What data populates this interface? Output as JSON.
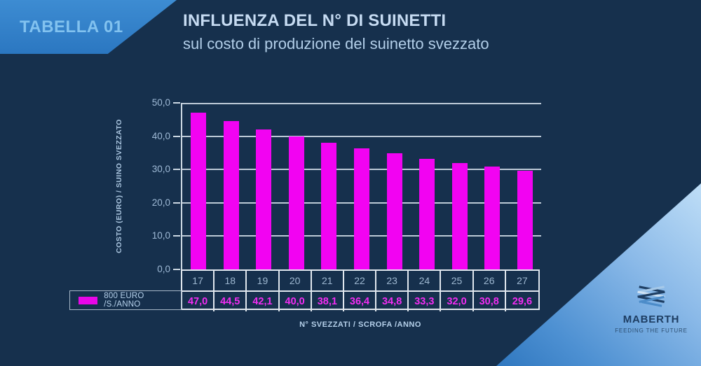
{
  "ribbon": {
    "label": "TABELLA 01"
  },
  "header": {
    "title": "INFLUENZA DEL N° DI SUINETTI",
    "subtitle": "sul costo di produzione del suinetto svezzato"
  },
  "chart_data": {
    "type": "bar",
    "title": "INFLUENZA DEL N° DI SUINETTI sul costo di produzione del suinetto svezzato",
    "categories": [
      "17",
      "18",
      "19",
      "20",
      "21",
      "22",
      "23",
      "24",
      "25",
      "26",
      "27"
    ],
    "values": [
      47.0,
      44.5,
      42.1,
      40.0,
      38.1,
      36.4,
      34.8,
      33.3,
      32.0,
      30.8,
      29.6
    ],
    "value_labels": [
      "47,0",
      "44,5",
      "42,1",
      "40,0",
      "38,1",
      "36,4",
      "34,8",
      "33,3",
      "32,0",
      "30,8",
      "29,6"
    ],
    "series": [
      {
        "name": "800 EURO /S./ANNO",
        "values": [
          47.0,
          44.5,
          42.1,
          40.0,
          38.1,
          36.4,
          34.8,
          33.3,
          32.0,
          30.8,
          29.6
        ]
      }
    ],
    "legend": "800 EURO /S./ANNO",
    "legend_position": "bottom-left",
    "xlabel": "N° SVEZZATI / SCROFA /ANNO",
    "ylabel": "COSTO (EURO) / SUINO SVEZZATO",
    "ylim": [
      0,
      50
    ],
    "yticks": [
      {
        "value": 50,
        "label": "50,0"
      },
      {
        "value": 40,
        "label": "40,0"
      },
      {
        "value": 30,
        "label": "30,0"
      },
      {
        "value": 20,
        "label": "20,0"
      },
      {
        "value": 10,
        "label": "10,0"
      },
      {
        "value": 0,
        "label": "0,0"
      }
    ],
    "grid": true,
    "bar_color": "#f203f2"
  },
  "logo": {
    "brand": "MABERTH",
    "tagline": "FEEDING THE FUTURE"
  },
  "colors": {
    "background": "#16304d",
    "ribbon_blue": "#2e7dc6",
    "accent_magenta": "#f203f2",
    "light_text": "#bdd6ee",
    "grid_line": "#cbd7e2",
    "corner_gradient_light": "#bcdcf6",
    "corner_gradient_dark": "#2f77bf",
    "brand_navy": "#1d3d62"
  }
}
